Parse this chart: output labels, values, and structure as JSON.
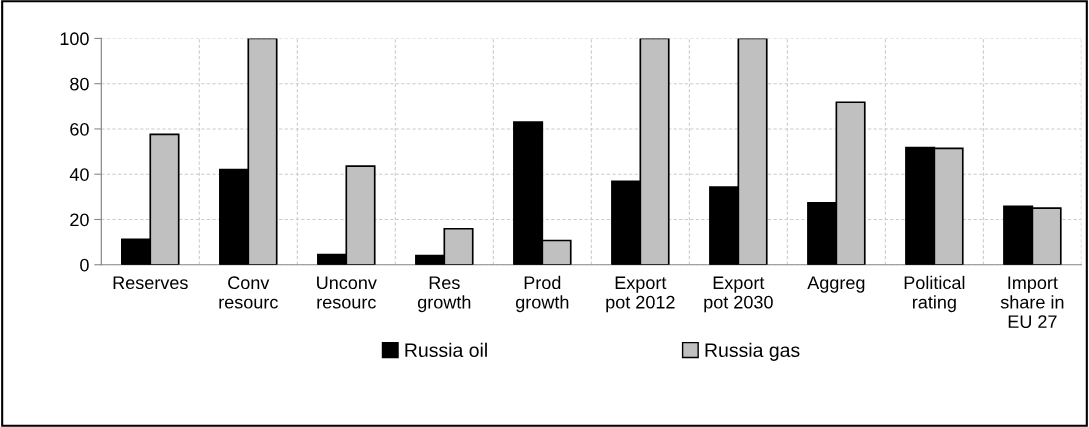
{
  "chart_data": {
    "type": "bar",
    "categories": [
      "Reserves",
      "Conv\nresourc",
      "Unconv\nresourc",
      "Res\ngrowth",
      "Prod\ngrowth",
      "Export\npot 2012",
      "Export\npot 2030",
      "Aggreg",
      "Political\nrating",
      "Import\nshare in\nEU 27"
    ],
    "series": [
      {
        "name": "Russia oil",
        "color": "#000000",
        "values": [
          11.2,
          42,
          4.5,
          4,
          63,
          36.8,
          34.3,
          27.4,
          51.8,
          25.8
        ]
      },
      {
        "name": "Russia gas",
        "color": "#c0c0c0",
        "values": [
          57.6,
          100,
          43.6,
          15.9,
          10.7,
          100,
          100,
          71.8,
          51.4,
          25
        ]
      }
    ],
    "ylim": [
      0,
      100
    ],
    "yticks": [
      0,
      20,
      40,
      60,
      80,
      100
    ],
    "grid": true,
    "legend": "bottom"
  }
}
